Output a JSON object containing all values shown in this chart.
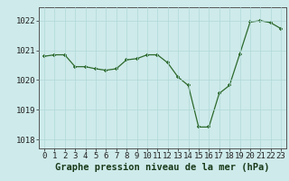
{
  "x": [
    0,
    1,
    2,
    3,
    4,
    5,
    6,
    7,
    8,
    9,
    10,
    11,
    12,
    13,
    14,
    15,
    16,
    17,
    18,
    19,
    20,
    21,
    22,
    23
  ],
  "y": [
    1020.8,
    1020.85,
    1020.85,
    1020.45,
    1020.45,
    1020.38,
    1020.33,
    1020.38,
    1020.68,
    1020.72,
    1020.85,
    1020.85,
    1020.58,
    1020.1,
    1019.82,
    1018.42,
    1018.42,
    1019.55,
    1019.82,
    1020.88,
    1021.95,
    1022.0,
    1021.93,
    1021.73
  ],
  "line_color": "#2d6a2d",
  "marker_color": "#2d6a2d",
  "bg_color": "#ceeaea",
  "grid_color": "#b0d8d8",
  "ylabel_ticks": [
    1018,
    1019,
    1020,
    1021,
    1022
  ],
  "ylim": [
    1017.7,
    1022.45
  ],
  "xlim": [
    -0.5,
    23.5
  ],
  "xlabel": "Graphe pression niveau de la mer (hPa)",
  "xtick_labels": [
    "0",
    "1",
    "2",
    "3",
    "4",
    "5",
    "6",
    "7",
    "8",
    "9",
    "10",
    "11",
    "12",
    "13",
    "14",
    "15",
    "16",
    "17",
    "18",
    "19",
    "20",
    "21",
    "22",
    "23"
  ],
  "label_fontsize": 7.5,
  "tick_fontsize": 6.5
}
